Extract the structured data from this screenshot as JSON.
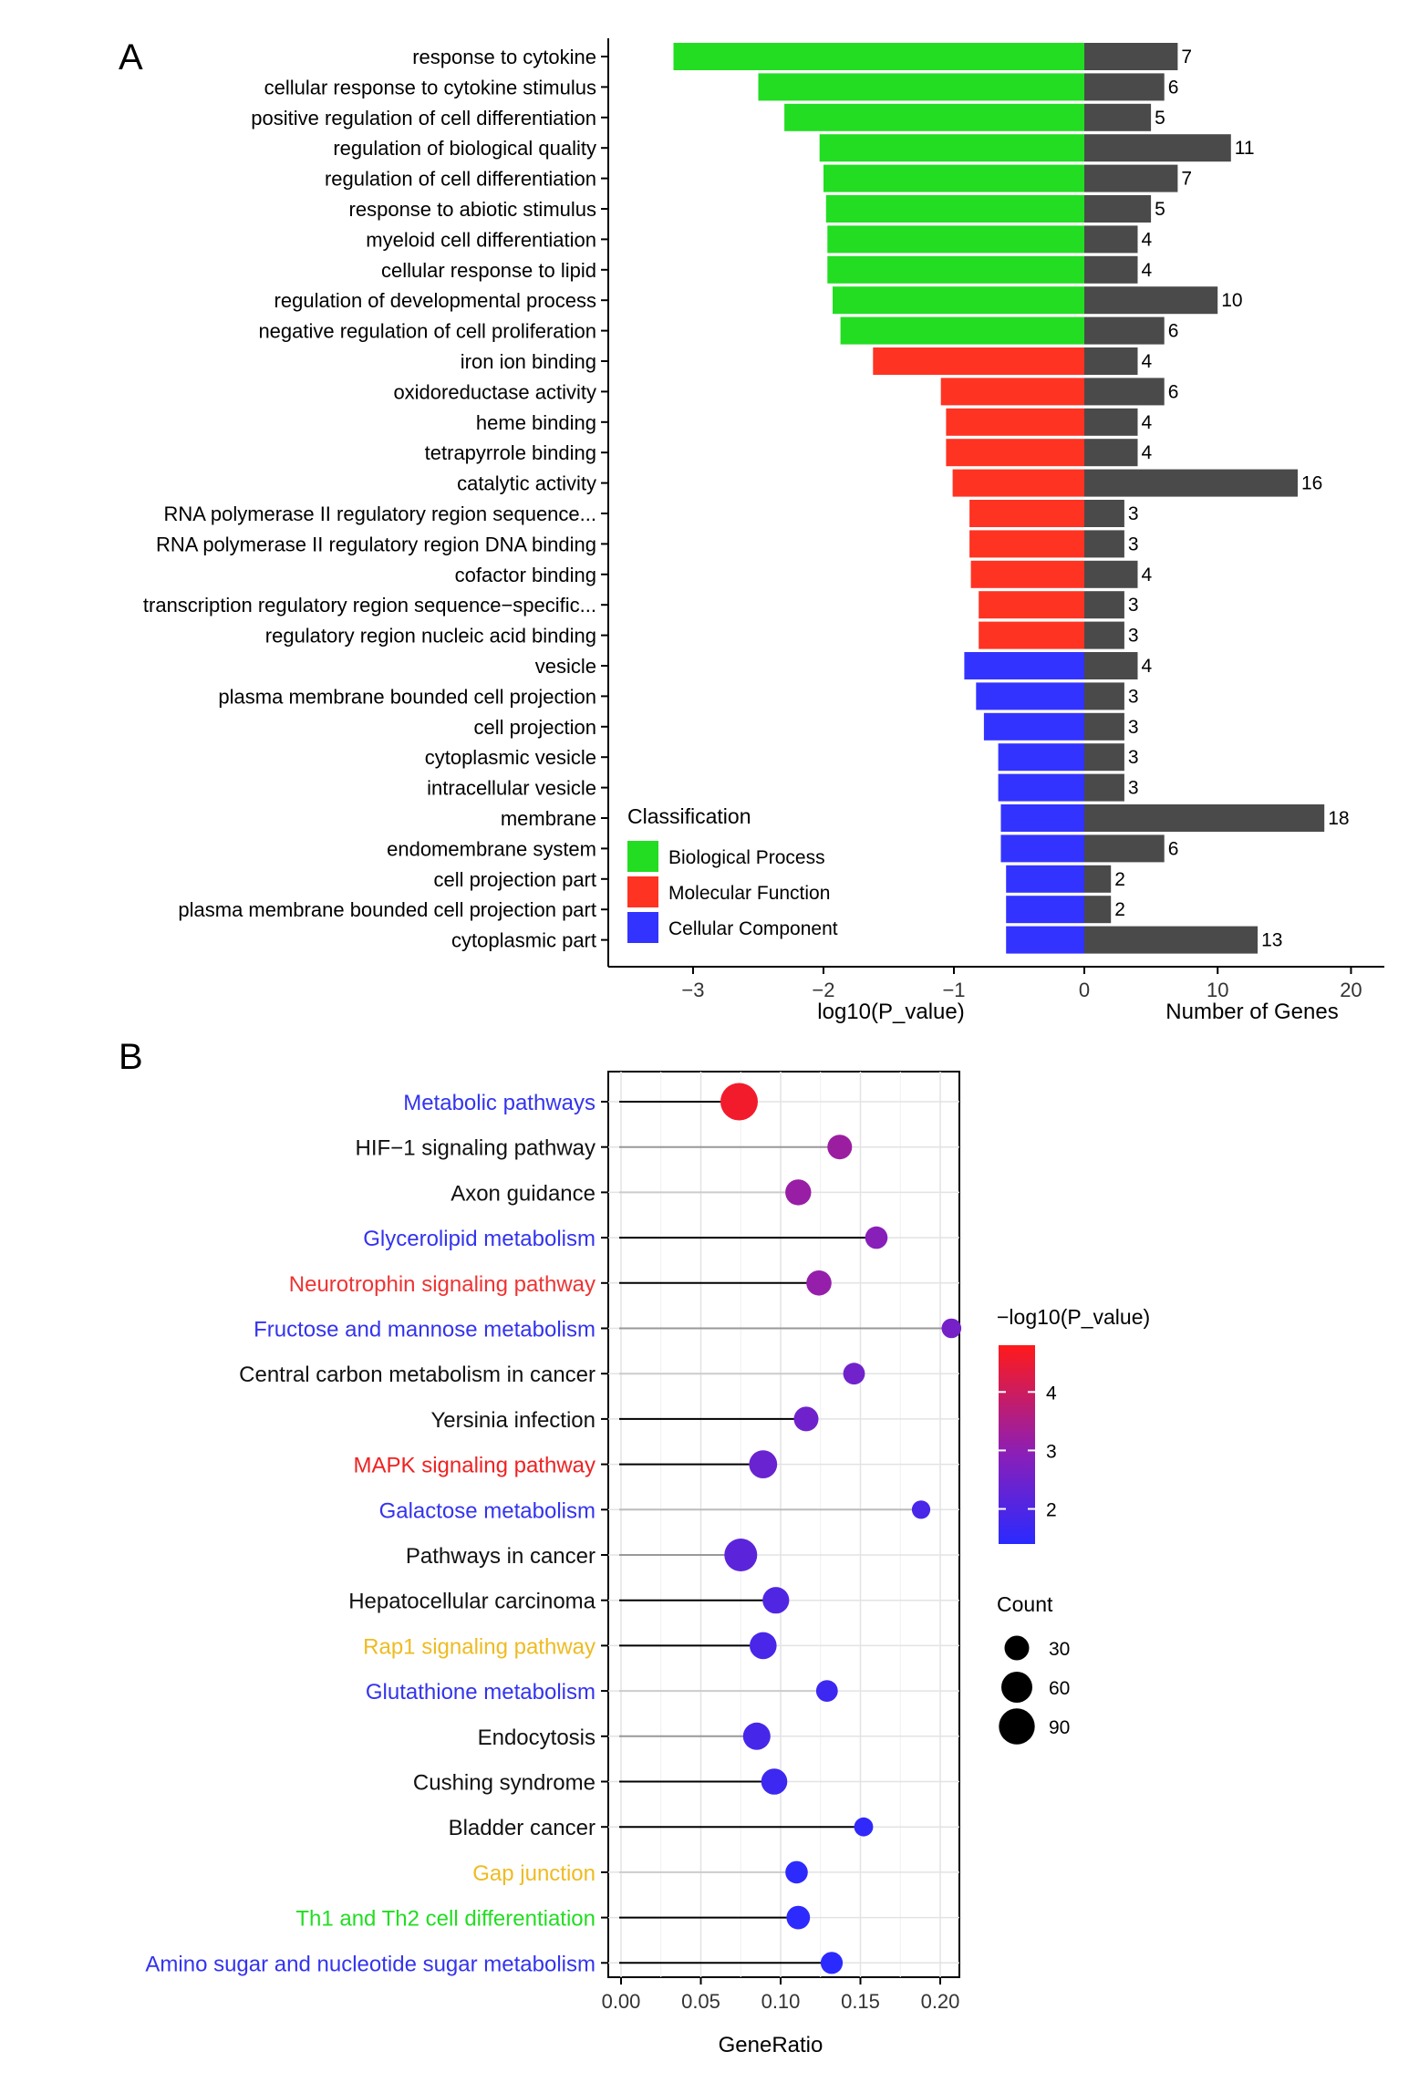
{
  "chart_data": [
    {
      "panel": "A",
      "type": "bar",
      "subtype": "diverging horizontal bar",
      "categories": [
        "response to cytokine",
        "cellular response to cytokine stimulus",
        "positive regulation of cell differentiation",
        "regulation of biological quality",
        "regulation of cell differentiation",
        "response to abiotic stimulus",
        "myeloid cell differentiation",
        "cellular response to lipid",
        "regulation of developmental process",
        "negative regulation of cell proliferation",
        "iron ion binding",
        "oxidoreductase activity",
        "heme binding",
        "tetrapyrrole binding",
        "catalytic activity",
        "RNA polymerase II regulatory region sequence...",
        "RNA polymerase II regulatory region DNA binding",
        "cofactor binding",
        "transcription regulatory region sequence−specific...",
        "regulatory region nucleic acid binding",
        "vesicle",
        "plasma membrane bounded cell projection",
        "cell projection",
        "cytoplasmic vesicle",
        "intracellular vesicle",
        "membrane",
        "endomembrane system",
        "cell projection part",
        "plasma membrane bounded cell projection part",
        "cytoplasmic part"
      ],
      "classes": [
        "Biological Process",
        "Biological Process",
        "Biological Process",
        "Biological Process",
        "Biological Process",
        "Biological Process",
        "Biological Process",
        "Biological Process",
        "Biological Process",
        "Biological Process",
        "Molecular Function",
        "Molecular Function",
        "Molecular Function",
        "Molecular Function",
        "Molecular Function",
        "Molecular Function",
        "Molecular Function",
        "Molecular Function",
        "Molecular Function",
        "Molecular Function",
        "Cellular Component",
        "Cellular Component",
        "Cellular Component",
        "Cellular Component",
        "Cellular Component",
        "Cellular Component",
        "Cellular Component",
        "Cellular Component",
        "Cellular Component",
        "Cellular Component"
      ],
      "series": [
        {
          "name": "log10(P_value)",
          "values": [
            -3.15,
            -2.5,
            -2.3,
            -2.03,
            -2.0,
            -1.98,
            -1.97,
            -1.97,
            -1.93,
            -1.87,
            -1.62,
            -1.1,
            -1.06,
            -1.06,
            -1.01,
            -0.88,
            -0.88,
            -0.87,
            -0.81,
            -0.81,
            -0.92,
            -0.83,
            -0.77,
            -0.66,
            -0.66,
            -0.64,
            -0.64,
            -0.6,
            -0.6,
            -0.6
          ]
        },
        {
          "name": "Number of Genes",
          "values": [
            7,
            6,
            5,
            11,
            7,
            5,
            4,
            4,
            10,
            6,
            4,
            6,
            4,
            4,
            16,
            3,
            3,
            4,
            3,
            3,
            4,
            3,
            3,
            3,
            3,
            18,
            6,
            2,
            2,
            13
          ]
        }
      ],
      "xlabel_left": "log10(P_value)",
      "xlabel_right": "Number of Genes",
      "xlim_left": [
        -3.65,
        0
      ],
      "xlim_right": [
        0,
        22.5
      ],
      "xticks_left": [
        "−3",
        "−2",
        "−1",
        "0"
      ],
      "xticks_right": [
        "10",
        "20"
      ],
      "legend": {
        "title": "Classification",
        "position": "bottom-left",
        "entries": [
          {
            "label": "Biological Process",
            "color": "#22dd22"
          },
          {
            "label": "Molecular Function",
            "color": "#ff3322"
          },
          {
            "label": "Cellular Component",
            "color": "#3333ff"
          }
        ]
      },
      "count_bar_color": "#4a4a4a"
    },
    {
      "panel": "B",
      "type": "scatter",
      "subtype": "lollipop",
      "categories": [
        "Metabolic pathways",
        "HIF−1 signaling pathway",
        "Axon guidance",
        "Glycerolipid metabolism",
        "Neurotrophin signaling pathway",
        "Fructose and mannose metabolism",
        "Central carbon metabolism in cancer",
        "Yersinia infection",
        "MAPK signaling pathway",
        "Galactose metabolism",
        "Pathways in cancer",
        "Hepatocellular carcinoma",
        "Rap1 signaling pathway",
        "Glutathione metabolism",
        "Endocytosis",
        "Cushing syndrome",
        "Bladder cancer",
        "Gap junction",
        "Th1 and Th2 cell differentiation",
        "Amino sugar and nucleotide sugar metabolism"
      ],
      "label_colors": [
        "#3333ee",
        "#111111",
        "#111111",
        "#3333ee",
        "#ee3333",
        "#3333ee",
        "#111111",
        "#111111",
        "#ee2222",
        "#3333ee",
        "#111111",
        "#111111",
        "#eebb22",
        "#3333ee",
        "#111111",
        "#111111",
        "#111111",
        "#eebb22",
        "#22dd22",
        "#3333ee"
      ],
      "gene_ratio": [
        0.074,
        0.137,
        0.111,
        0.16,
        0.124,
        0.207,
        0.146,
        0.116,
        0.089,
        0.188,
        0.075,
        0.097,
        0.089,
        0.129,
        0.085,
        0.096,
        0.152,
        0.11,
        0.111,
        0.132
      ],
      "neg_log10_p": [
        4.6,
        3.2,
        3.15,
        2.9,
        3.1,
        2.6,
        2.55,
        2.5,
        2.4,
        1.9,
        2.2,
        2.0,
        1.9,
        1.7,
        1.85,
        1.7,
        1.5,
        1.45,
        1.45,
        1.4
      ],
      "count": [
        100,
        30,
        35,
        22,
        32,
        14,
        20,
        30,
        45,
        11,
        70,
        38,
        40,
        20,
        42,
        36,
        12,
        22,
        26,
        21
      ],
      "stem_colors": [
        "#000000",
        "#999999",
        "#cccccc",
        "#000000",
        "#000000",
        "#999999",
        "#cccccc",
        "#000000",
        "#000000",
        "#bbbbbb",
        "#999999",
        "#000000",
        "#000000",
        "#cccccc",
        "#999999",
        "#000000",
        "#000000",
        "#cccccc",
        "#000000",
        "#000000"
      ],
      "xlabel": "GeneRatio",
      "xlim": [
        -0.008,
        0.212
      ],
      "xticks": [
        "0.00",
        "0.05",
        "0.10",
        "0.15",
        "0.20"
      ],
      "grid": true,
      "colorbar": {
        "title": "−log10(P_value)",
        "ticks": [
          "4",
          "3",
          "2"
        ],
        "range": [
          1.4,
          4.8
        ],
        "low_color": "#2a2aff",
        "high_color": "#ff1a1a"
      },
      "size_legend": {
        "title": "Count",
        "labels": [
          "30",
          "60",
          "90"
        ]
      }
    }
  ]
}
